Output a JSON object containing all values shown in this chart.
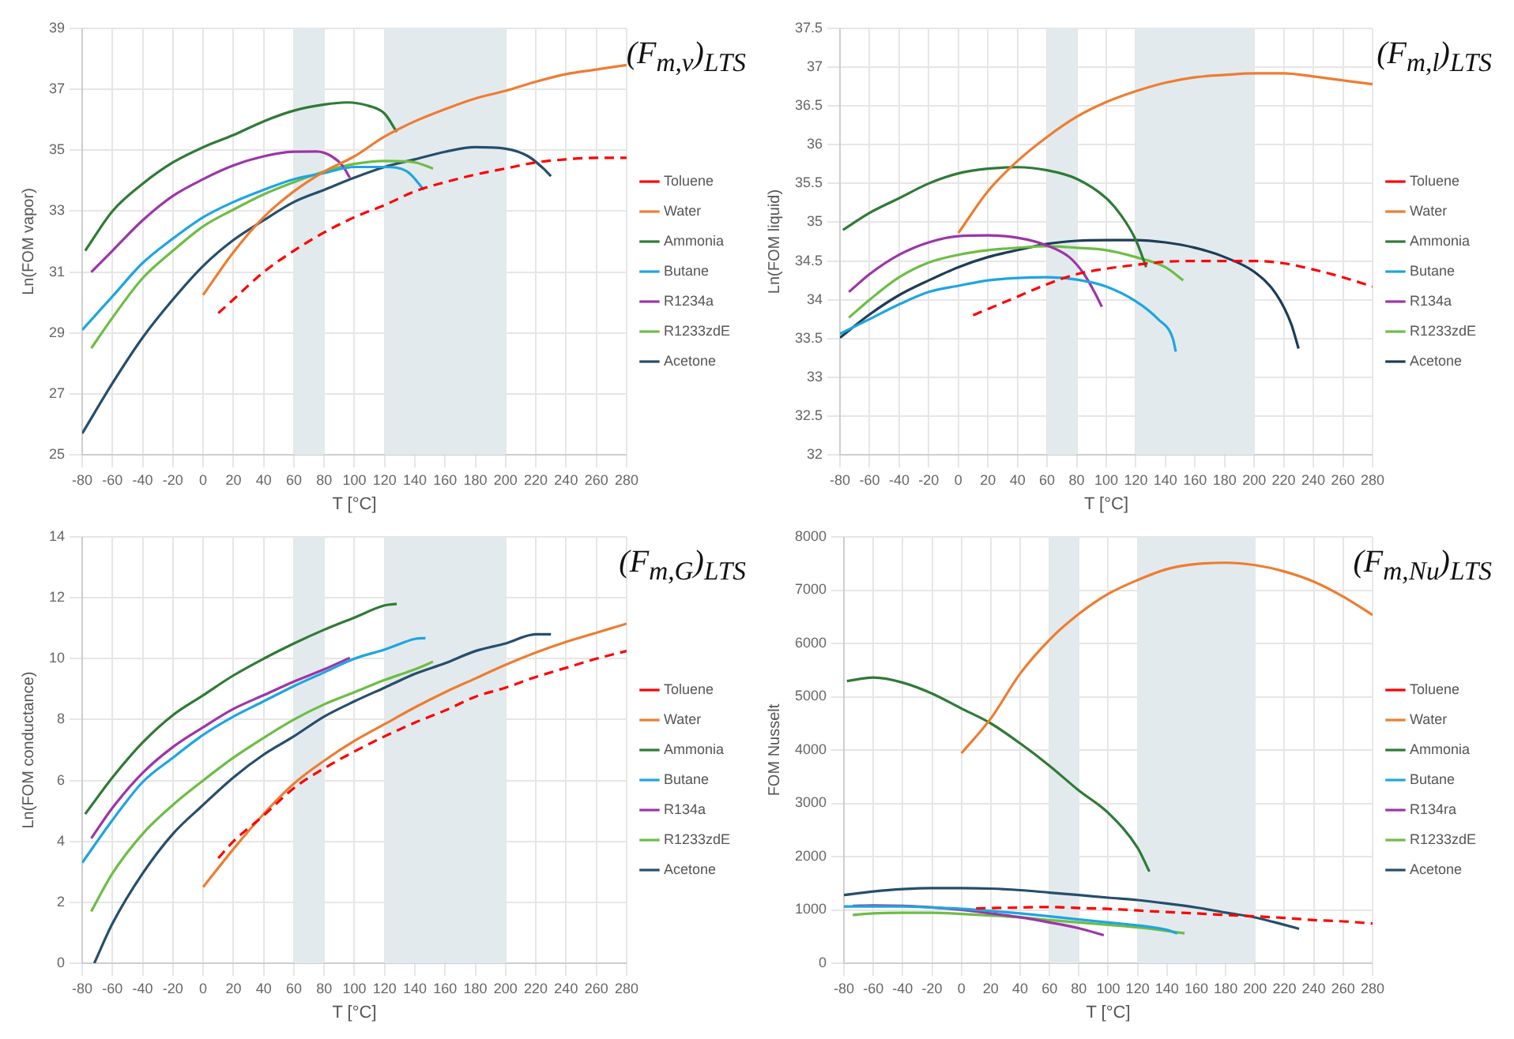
{
  "chart_data": [
    {
      "type": "line",
      "title": "(F$_{m,v}$)$_{LTS}$",
      "xlabel": "T [°C]",
      "ylabel": "Ln(FOM vapor)",
      "xlim": [
        -80,
        280
      ],
      "xticks": [
        -80,
        -60,
        -40,
        -20,
        0,
        20,
        40,
        60,
        80,
        100,
        120,
        140,
        160,
        180,
        200,
        220,
        240,
        260,
        280
      ],
      "ylim": [
        25,
        39
      ],
      "yticks": [
        25,
        27,
        29,
        31,
        33,
        35,
        37,
        39
      ],
      "grid": true,
      "legend": "right",
      "bands": [
        {
          "axis": "x",
          "from": 60,
          "to": 80,
          "color": "#e3eaee"
        },
        {
          "axis": "x",
          "from": 120,
          "to": 200,
          "color": "#e3eaee"
        }
      ],
      "series": [
        {
          "name": "Toluene",
          "color": "#ff0000",
          "line_style": "dashed",
          "x": [
            10,
            20,
            40,
            60,
            80,
            100,
            120,
            140,
            160,
            180,
            200,
            220,
            240,
            260,
            280
          ],
          "values": [
            29.65,
            30.1,
            31.0,
            31.7,
            32.3,
            32.8,
            33.2,
            33.65,
            33.95,
            34.2,
            34.4,
            34.6,
            34.7,
            34.75,
            34.75
          ]
        },
        {
          "name": "Water",
          "color": "#ed7d31",
          "x": [
            0,
            20,
            40,
            60,
            80,
            100,
            120,
            140,
            160,
            180,
            200,
            220,
            240,
            260,
            280
          ],
          "values": [
            30.25,
            31.65,
            32.8,
            33.65,
            34.3,
            34.8,
            35.45,
            35.95,
            36.35,
            36.7,
            36.95,
            37.25,
            37.5,
            37.65,
            37.8
          ]
        },
        {
          "name": "Ammonia",
          "color": "#2f7a36",
          "x": [
            -78,
            -60,
            -40,
            -20,
            0,
            20,
            40,
            60,
            80,
            95,
            110,
            120,
            128
          ],
          "values": [
            31.7,
            33.0,
            33.9,
            34.6,
            35.1,
            35.5,
            35.95,
            36.3,
            36.5,
            36.57,
            36.45,
            36.2,
            35.6
          ]
        },
        {
          "name": "Butane",
          "color": "#1ea5e0",
          "x": [
            -80,
            -60,
            -40,
            -20,
            0,
            20,
            40,
            60,
            80,
            100,
            120,
            135,
            146
          ],
          "values": [
            29.1,
            30.2,
            31.3,
            32.1,
            32.8,
            33.3,
            33.7,
            34.05,
            34.25,
            34.45,
            34.45,
            34.3,
            33.7
          ]
        },
        {
          "name": "R1234a",
          "color": "#9c35a8",
          "x": [
            -74,
            -60,
            -40,
            -20,
            0,
            20,
            40,
            60,
            75,
            85,
            92,
            97
          ],
          "values": [
            31.0,
            31.7,
            32.7,
            33.5,
            34.05,
            34.5,
            34.8,
            34.95,
            34.96,
            34.8,
            34.5,
            34.1
          ]
        },
        {
          "name": "R1233zdE",
          "color": "#6dbd45",
          "x": [
            -74,
            -60,
            -40,
            -20,
            0,
            20,
            40,
            60,
            80,
            100,
            120,
            140,
            152
          ],
          "values": [
            28.5,
            29.5,
            30.8,
            31.7,
            32.5,
            33.05,
            33.55,
            33.95,
            34.3,
            34.55,
            34.65,
            34.6,
            34.4
          ]
        },
        {
          "name": "Acetone",
          "color": "#264e6b",
          "x": [
            -80,
            -60,
            -40,
            -20,
            0,
            20,
            40,
            60,
            80,
            100,
            120,
            140,
            160,
            180,
            200,
            215,
            225,
            230
          ],
          "values": [
            25.7,
            27.35,
            28.85,
            30.1,
            31.2,
            32.05,
            32.7,
            33.3,
            33.7,
            34.1,
            34.45,
            34.7,
            34.95,
            35.1,
            35.05,
            34.8,
            34.4,
            34.15
          ]
        }
      ]
    },
    {
      "type": "line",
      "title": "(F$_{m,l}$)$_{LTS}$",
      "xlabel": "T [°C]",
      "ylabel": "Ln(FOM liquid)",
      "xlim": [
        -80,
        280
      ],
      "xticks": [
        -80,
        -60,
        -40,
        -20,
        0,
        20,
        40,
        60,
        80,
        100,
        120,
        140,
        160,
        180,
        200,
        220,
        240,
        260,
        280
      ],
      "ylim": [
        32,
        37.5
      ],
      "yticks": [
        32,
        32.5,
        33,
        33.5,
        34,
        34.5,
        35,
        35.5,
        36,
        36.5,
        37,
        37.5
      ],
      "grid": true,
      "legend": "right",
      "bands": [
        {
          "axis": "x",
          "from": 60,
          "to": 80,
          "color": "#e3eaee"
        },
        {
          "axis": "x",
          "from": 120,
          "to": 200,
          "color": "#e3eaee"
        }
      ],
      "series": [
        {
          "name": "Toluene",
          "color": "#ff0000",
          "line_style": "dashed",
          "x": [
            10,
            20,
            40,
            60,
            80,
            100,
            120,
            140,
            160,
            180,
            200,
            220,
            240,
            260,
            280
          ],
          "values": [
            33.8,
            33.88,
            34.04,
            34.2,
            34.33,
            34.4,
            34.45,
            34.49,
            34.5,
            34.5,
            34.5,
            34.47,
            34.39,
            34.29,
            34.17
          ]
        },
        {
          "name": "Water",
          "color": "#ed7d31",
          "x": [
            0,
            20,
            40,
            60,
            80,
            100,
            120,
            140,
            160,
            180,
            200,
            220,
            240,
            260,
            280
          ],
          "values": [
            34.86,
            35.4,
            35.79,
            36.1,
            36.36,
            36.55,
            36.69,
            36.8,
            36.87,
            36.9,
            36.92,
            36.92,
            36.88,
            36.83,
            36.78
          ]
        },
        {
          "name": "Ammonia",
          "color": "#2f7a36",
          "x": [
            -78,
            -60,
            -40,
            -20,
            0,
            20,
            40,
            60,
            80,
            100,
            110,
            120,
            127
          ],
          "values": [
            34.9,
            35.12,
            35.31,
            35.5,
            35.63,
            35.69,
            35.71,
            35.67,
            35.56,
            35.31,
            35.09,
            34.77,
            34.42
          ]
        },
        {
          "name": "Butane",
          "color": "#1ea5e0",
          "x": [
            -80,
            -60,
            -40,
            -20,
            0,
            20,
            40,
            60,
            80,
            100,
            120,
            135,
            145,
            147
          ],
          "values": [
            33.56,
            33.75,
            33.94,
            34.1,
            34.18,
            34.25,
            34.28,
            34.29,
            34.26,
            34.17,
            33.98,
            33.75,
            33.5,
            33.33
          ]
        },
        {
          "name": "R134a",
          "color": "#9c35a8",
          "x": [
            -74,
            -60,
            -40,
            -20,
            0,
            20,
            40,
            60,
            75,
            85,
            92,
            97
          ],
          "values": [
            34.1,
            34.33,
            34.58,
            34.74,
            34.82,
            34.83,
            34.8,
            34.7,
            34.55,
            34.33,
            34.1,
            33.91
          ]
        },
        {
          "name": "R1233zdE",
          "color": "#6dbd45",
          "x": [
            -74,
            -60,
            -40,
            -20,
            0,
            20,
            40,
            60,
            80,
            100,
            120,
            140,
            152
          ],
          "values": [
            33.77,
            34.0,
            34.29,
            34.48,
            34.58,
            34.64,
            34.67,
            34.69,
            34.67,
            34.64,
            34.55,
            34.42,
            34.25
          ]
        },
        {
          "name": "Acetone",
          "color": "#1d3d57",
          "x": [
            -80,
            -60,
            -40,
            -20,
            0,
            20,
            40,
            60,
            80,
            100,
            120,
            140,
            160,
            180,
            200,
            215,
            225,
            230
          ],
          "values": [
            33.51,
            33.81,
            34.06,
            34.25,
            34.42,
            34.55,
            34.64,
            34.72,
            34.76,
            34.77,
            34.77,
            34.74,
            34.67,
            34.55,
            34.36,
            34.07,
            33.69,
            33.37
          ]
        }
      ]
    },
    {
      "type": "line",
      "title": "(F$_{m,G}$)$_{LTS}$",
      "xlabel": "T [°C]",
      "ylabel": "Ln(FOM conductance)",
      "xlim": [
        -80,
        280
      ],
      "xticks": [
        -80,
        -60,
        -40,
        -20,
        0,
        20,
        40,
        60,
        80,
        100,
        120,
        140,
        160,
        180,
        200,
        220,
        240,
        260,
        280
      ],
      "ylim": [
        0,
        14
      ],
      "yticks": [
        0,
        2,
        4,
        6,
        8,
        10,
        12,
        14
      ],
      "grid": true,
      "legend": "right",
      "bands": [
        {
          "axis": "x",
          "from": 60,
          "to": 80,
          "color": "#e3eaee"
        },
        {
          "axis": "x",
          "from": 120,
          "to": 200,
          "color": "#e3eaee"
        }
      ],
      "series": [
        {
          "name": "Toluene",
          "color": "#ff0000",
          "line_style": "dashed",
          "x": [
            10,
            20,
            40,
            60,
            80,
            100,
            120,
            140,
            160,
            180,
            200,
            220,
            240,
            260,
            280
          ],
          "values": [
            3.45,
            4.0,
            4.85,
            5.75,
            6.4,
            6.95,
            7.45,
            7.9,
            8.3,
            8.75,
            9.05,
            9.4,
            9.7,
            10.0,
            10.25
          ]
        },
        {
          "name": "Water",
          "color": "#ed7d31",
          "x": [
            0,
            20,
            40,
            60,
            80,
            100,
            120,
            140,
            160,
            180,
            200,
            220,
            240,
            260,
            280
          ],
          "values": [
            2.5,
            3.75,
            4.9,
            5.9,
            6.65,
            7.3,
            7.85,
            8.4,
            8.9,
            9.35,
            9.8,
            10.2,
            10.55,
            10.85,
            11.15
          ]
        },
        {
          "name": "Ammonia",
          "color": "#2f7a36",
          "x": [
            -78,
            -60,
            -40,
            -20,
            0,
            20,
            40,
            60,
            80,
            100,
            120,
            128
          ],
          "values": [
            4.9,
            6.1,
            7.25,
            8.15,
            8.8,
            9.45,
            10.0,
            10.5,
            10.95,
            11.35,
            11.75,
            11.8
          ]
        },
        {
          "name": "Butane",
          "color": "#1ea5e0",
          "x": [
            -80,
            -60,
            -40,
            -20,
            0,
            20,
            40,
            60,
            80,
            100,
            120,
            140,
            147
          ],
          "values": [
            3.3,
            4.7,
            5.95,
            6.75,
            7.5,
            8.1,
            8.6,
            9.1,
            9.55,
            10.0,
            10.3,
            10.65,
            10.68
          ]
        },
        {
          "name": "R134a",
          "color": "#9c35a8",
          "x": [
            -74,
            -60,
            -40,
            -20,
            0,
            20,
            40,
            60,
            80,
            97
          ],
          "values": [
            4.1,
            5.1,
            6.25,
            7.1,
            7.75,
            8.35,
            8.8,
            9.25,
            9.65,
            10.03
          ]
        },
        {
          "name": "R1233zdE",
          "color": "#6dbd45",
          "x": [
            -74,
            -60,
            -40,
            -20,
            0,
            20,
            40,
            60,
            80,
            100,
            120,
            140,
            152
          ],
          "values": [
            1.7,
            2.95,
            4.25,
            5.2,
            6.0,
            6.75,
            7.4,
            8.0,
            8.5,
            8.9,
            9.3,
            9.65,
            9.9
          ]
        },
        {
          "name": "Acetone",
          "color": "#264e6b",
          "x": [
            -72,
            -60,
            -40,
            -20,
            0,
            20,
            40,
            60,
            80,
            100,
            120,
            140,
            160,
            180,
            200,
            220,
            230
          ],
          "values": [
            0,
            1.3,
            2.95,
            4.25,
            5.2,
            6.1,
            6.85,
            7.45,
            8.1,
            8.6,
            9.05,
            9.5,
            9.85,
            10.25,
            10.5,
            10.8,
            10.8
          ]
        }
      ]
    },
    {
      "type": "line",
      "title": "(F$_{m,Nu}$)$_{LTS}$",
      "xlabel": "T [°C]",
      "ylabel": "FOM Nusselt",
      "xlim": [
        -80,
        280
      ],
      "xticks": [
        -80,
        -60,
        -40,
        -20,
        0,
        20,
        40,
        60,
        80,
        100,
        120,
        140,
        160,
        180,
        200,
        220,
        240,
        260,
        280
      ],
      "ylim": [
        0,
        8000
      ],
      "yticks": [
        0,
        1000,
        2000,
        3000,
        4000,
        5000,
        6000,
        7000,
        8000
      ],
      "grid": true,
      "legend": "right",
      "bands": [
        {
          "axis": "x",
          "from": 60,
          "to": 80,
          "color": "#e3eaee"
        },
        {
          "axis": "x",
          "from": 120,
          "to": 200,
          "color": "#e3eaee"
        }
      ],
      "series": [
        {
          "name": "Toluene",
          "color": "#ff0000",
          "line_style": "dashed",
          "x": [
            10,
            40,
            60,
            80,
            100,
            120,
            140,
            160,
            180,
            200,
            220,
            240,
            260,
            280
          ],
          "values": [
            1030,
            1045,
            1055,
            1035,
            1020,
            990,
            960,
            935,
            905,
            880,
            850,
            810,
            785,
            745
          ]
        },
        {
          "name": "Water",
          "color": "#ed7d31",
          "x": [
            0,
            20,
            40,
            60,
            80,
            100,
            120,
            140,
            160,
            180,
            200,
            220,
            240,
            260,
            280
          ],
          "values": [
            3940,
            4590,
            5435,
            6070,
            6555,
            6930,
            7190,
            7395,
            7490,
            7515,
            7470,
            7350,
            7160,
            6880,
            6535
          ]
        },
        {
          "name": "Ammonia",
          "color": "#2f7a36",
          "x": [
            -78,
            -60,
            -40,
            -20,
            0,
            20,
            40,
            60,
            80,
            100,
            120,
            128
          ],
          "values": [
            5295,
            5360,
            5265,
            5060,
            4780,
            4500,
            4125,
            3705,
            3240,
            2820,
            2165,
            1720
          ]
        },
        {
          "name": "Butane",
          "color": "#1ea5e0",
          "x": [
            -80,
            -40,
            -20,
            0,
            20,
            40,
            60,
            80,
            100,
            120,
            140,
            147
          ],
          "values": [
            1065,
            1065,
            1045,
            1020,
            980,
            935,
            880,
            820,
            765,
            710,
            625,
            560
          ]
        },
        {
          "name": "R134ra",
          "color": "#9c35a8",
          "x": [
            -74,
            -60,
            -40,
            -20,
            0,
            20,
            40,
            60,
            80,
            97
          ],
          "values": [
            1075,
            1085,
            1075,
            1045,
            1000,
            935,
            860,
            765,
            655,
            525
          ]
        },
        {
          "name": "R1233zdE",
          "color": "#6dbd45",
          "x": [
            -74,
            -60,
            -40,
            -20,
            0,
            20,
            40,
            60,
            80,
            100,
            120,
            140,
            152
          ],
          "values": [
            905,
            935,
            945,
            945,
            925,
            895,
            860,
            810,
            765,
            720,
            670,
            605,
            560
          ]
        },
        {
          "name": "Acetone",
          "color": "#264e6b",
          "x": [
            -80,
            -60,
            -40,
            -20,
            0,
            20,
            40,
            60,
            80,
            100,
            120,
            140,
            160,
            180,
            200,
            220,
            230
          ],
          "values": [
            1280,
            1345,
            1390,
            1410,
            1410,
            1400,
            1370,
            1325,
            1280,
            1230,
            1185,
            1120,
            1045,
            950,
            860,
            720,
            645
          ]
        }
      ]
    }
  ]
}
